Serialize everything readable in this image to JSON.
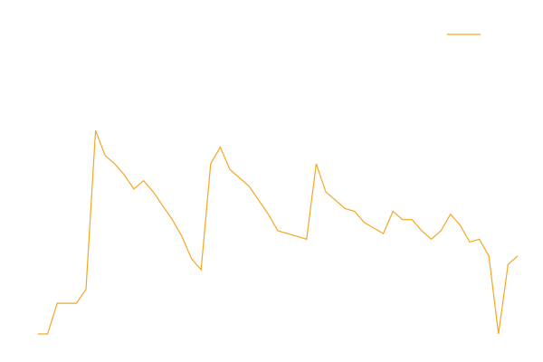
{
  "chart_data": {
    "type": "line",
    "title": "",
    "xlabel": "",
    "ylabel": "",
    "grid": false,
    "axes_visible": false,
    "legend": {
      "placement": "top-right",
      "entries": [
        ""
      ]
    },
    "xlim": [
      0,
      50
    ],
    "ylim": [
      0,
      100
    ],
    "series": [
      {
        "name": "",
        "color": "#f5a623",
        "x": [
          0,
          1,
          2,
          3,
          4,
          5,
          6,
          7,
          8,
          9,
          10,
          11,
          12,
          13,
          14,
          15,
          16,
          17,
          18,
          19,
          20,
          21,
          22,
          23,
          24,
          25,
          26,
          27,
          28,
          29,
          30,
          31,
          32,
          33,
          34,
          35,
          36,
          37,
          38,
          39,
          40,
          41,
          42,
          43,
          44,
          45,
          46,
          47,
          48,
          49,
          50
        ],
        "values": [
          0,
          0,
          11,
          11,
          11,
          16,
          73,
          64,
          61,
          57,
          52,
          55,
          51,
          46,
          41,
          35,
          27,
          23,
          61,
          67,
          59,
          56,
          53,
          48,
          43,
          37,
          36,
          35,
          34,
          61,
          51,
          48,
          45,
          44,
          40,
          38,
          36,
          44,
          41,
          41,
          37,
          34,
          37,
          43,
          39,
          33,
          34,
          28,
          0,
          25,
          28
        ]
      }
    ]
  }
}
